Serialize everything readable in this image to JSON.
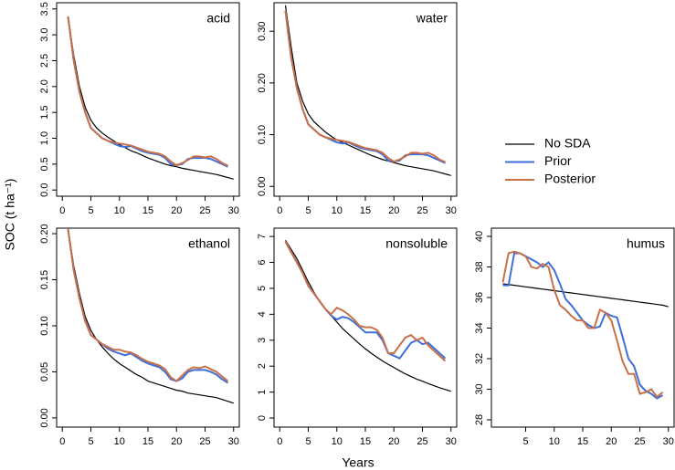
{
  "xlabel": "Years",
  "ylabel": "SOC (t ha⁻¹)",
  "chart_data": [
    {
      "type": "line",
      "title": "acid",
      "x": [
        1,
        2,
        3,
        4,
        5,
        6,
        7,
        8,
        9,
        10,
        11,
        12,
        13,
        14,
        15,
        16,
        17,
        18,
        19,
        20,
        21,
        22,
        23,
        24,
        25,
        26,
        27,
        28,
        29,
        30
      ],
      "series": [
        {
          "name": "No SDA",
          "color": "#000000",
          "values": [
            3.35,
            2.6,
            2.0,
            1.6,
            1.35,
            1.2,
            1.1,
            1.02,
            0.95,
            0.88,
            0.82,
            0.76,
            0.72,
            0.67,
            0.62,
            0.58,
            0.54,
            0.5,
            0.47,
            0.45,
            0.42,
            0.4,
            0.38,
            0.36,
            0.34,
            0.32,
            0.3,
            0.27,
            0.24,
            0.21
          ]
        },
        {
          "name": "Prior",
          "color": "#3f6fd8",
          "values": [
            3.35,
            2.5,
            1.9,
            1.5,
            1.2,
            1.1,
            1.0,
            0.95,
            0.9,
            0.85,
            0.83,
            0.85,
            0.8,
            0.75,
            0.72,
            0.7,
            0.68,
            0.62,
            0.5,
            0.48,
            0.5,
            0.6,
            0.62,
            0.62,
            0.62,
            0.6,
            0.55,
            0.5,
            0.45,
            null
          ]
        },
        {
          "name": "Posterior",
          "color": "#c8704a",
          "values": [
            3.35,
            2.5,
            1.9,
            1.5,
            1.2,
            1.1,
            1.0,
            0.95,
            0.92,
            0.9,
            0.88,
            0.86,
            0.82,
            0.78,
            0.74,
            0.72,
            0.7,
            0.65,
            0.55,
            0.48,
            0.52,
            0.58,
            0.65,
            0.65,
            0.63,
            0.65,
            0.6,
            0.52,
            0.47,
            null
          ]
        }
      ],
      "xlim": [
        -1,
        31
      ],
      "ylim": [
        -0.12,
        3.62
      ],
      "xticks": [
        0,
        5,
        10,
        15,
        20,
        25,
        30
      ],
      "yticks": [
        {
          "value": 0,
          "label": "0.0"
        },
        0.5,
        {
          "value": 1,
          "label": "1.0"
        },
        1.5,
        {
          "value": 2,
          "label": "2.0"
        },
        2.5,
        {
          "value": 3,
          "label": "3.0"
        },
        3.5
      ]
    },
    {
      "type": "line",
      "title": "water",
      "x": [
        1,
        2,
        3,
        4,
        5,
        6,
        7,
        8,
        9,
        10,
        11,
        12,
        13,
        14,
        15,
        16,
        17,
        18,
        19,
        20,
        21,
        22,
        23,
        24,
        25,
        26,
        27,
        28,
        29,
        30
      ],
      "series": [
        {
          "name": "No SDA",
          "color": "#000000",
          "values": [
            0.35,
            0.27,
            0.2,
            0.165,
            0.14,
            0.125,
            0.115,
            0.105,
            0.097,
            0.09,
            0.085,
            0.08,
            0.075,
            0.07,
            0.065,
            0.06,
            0.056,
            0.052,
            0.049,
            0.046,
            0.043,
            0.04,
            0.038,
            0.036,
            0.034,
            0.032,
            0.03,
            0.027,
            0.024,
            0.021
          ]
        },
        {
          "name": "Prior",
          "color": "#3f6fd8",
          "values": [
            0.34,
            0.25,
            0.19,
            0.15,
            0.12,
            0.11,
            0.1,
            0.095,
            0.09,
            0.085,
            0.083,
            0.085,
            0.08,
            0.075,
            0.072,
            0.07,
            0.068,
            0.062,
            0.05,
            0.048,
            0.05,
            0.06,
            0.062,
            0.062,
            0.062,
            0.06,
            0.055,
            0.05,
            0.045,
            null
          ]
        },
        {
          "name": "Posterior",
          "color": "#c8704a",
          "values": [
            0.34,
            0.25,
            0.19,
            0.15,
            0.12,
            0.11,
            0.1,
            0.095,
            0.092,
            0.09,
            0.088,
            0.086,
            0.082,
            0.078,
            0.074,
            0.072,
            0.07,
            0.065,
            0.055,
            0.048,
            0.052,
            0.058,
            0.065,
            0.065,
            0.063,
            0.065,
            0.06,
            0.052,
            0.047,
            null
          ]
        }
      ],
      "xlim": [
        -1,
        31
      ],
      "ylim": [
        -0.019,
        0.355
      ],
      "xticks": [
        0,
        5,
        10,
        15,
        20,
        25,
        30
      ],
      "yticks": [
        {
          "value": 0,
          "label": "0.00"
        },
        {
          "value": 0.1,
          "label": "0.10"
        },
        {
          "value": 0.2,
          "label": "0.20"
        },
        {
          "value": 0.3,
          "label": "0.30"
        }
      ]
    },
    {
      "type": "line",
      "title": "ethanol",
      "x": [
        1,
        2,
        3,
        4,
        5,
        6,
        7,
        8,
        9,
        10,
        11,
        12,
        13,
        14,
        15,
        16,
        17,
        18,
        19,
        20,
        21,
        22,
        23,
        24,
        25,
        26,
        27,
        28,
        29,
        30
      ],
      "series": [
        {
          "name": "No SDA",
          "color": "#000000",
          "values": [
            0.205,
            0.165,
            0.135,
            0.11,
            0.095,
            0.085,
            0.077,
            0.07,
            0.064,
            0.059,
            0.055,
            0.051,
            0.047,
            0.044,
            0.04,
            0.038,
            0.036,
            0.034,
            0.032,
            0.03,
            0.029,
            0.027,
            0.026,
            0.025,
            0.024,
            0.023,
            0.022,
            0.02,
            0.018,
            0.016
          ]
        },
        {
          "name": "Prior",
          "color": "#3f6fd8",
          "values": [
            0.205,
            0.16,
            0.13,
            0.105,
            0.09,
            0.085,
            0.08,
            0.075,
            0.072,
            0.07,
            0.068,
            0.07,
            0.066,
            0.062,
            0.059,
            0.057,
            0.055,
            0.05,
            0.042,
            0.04,
            0.043,
            0.05,
            0.052,
            0.052,
            0.052,
            0.05,
            0.047,
            0.042,
            0.038,
            null
          ]
        },
        {
          "name": "Posterior",
          "color": "#c8704a",
          "values": [
            0.205,
            0.16,
            0.13,
            0.105,
            0.09,
            0.085,
            0.08,
            0.077,
            0.074,
            0.074,
            0.072,
            0.071,
            0.068,
            0.064,
            0.061,
            0.059,
            0.057,
            0.053,
            0.044,
            0.04,
            0.046,
            0.052,
            0.055,
            0.054,
            0.056,
            0.053,
            0.05,
            0.045,
            0.04,
            null
          ]
        }
      ],
      "xlim": [
        -1,
        31
      ],
      "ylim": [
        -0.01,
        0.206
      ],
      "xticks": [
        0,
        5,
        10,
        15,
        20,
        25,
        30
      ],
      "yticks": [
        {
          "value": 0,
          "label": "0.00"
        },
        0.05,
        {
          "value": 0.1,
          "label": "0.10"
        },
        0.15,
        {
          "value": 0.2,
          "label": "0.20"
        }
      ]
    },
    {
      "type": "line",
      "title": "nonsoluble",
      "x": [
        1,
        2,
        3,
        4,
        5,
        6,
        7,
        8,
        9,
        10,
        11,
        12,
        13,
        14,
        15,
        16,
        17,
        18,
        19,
        20,
        21,
        22,
        23,
        24,
        25,
        26,
        27,
        28,
        29,
        30
      ],
      "series": [
        {
          "name": "No SDA",
          "color": "#000000",
          "values": [
            6.85,
            6.5,
            6.15,
            5.7,
            5.25,
            4.85,
            4.5,
            4.2,
            3.95,
            3.7,
            3.45,
            3.25,
            3.05,
            2.85,
            2.67,
            2.5,
            2.35,
            2.2,
            2.07,
            1.95,
            1.82,
            1.7,
            1.6,
            1.5,
            1.42,
            1.33,
            1.25,
            1.17,
            1.1,
            1.03
          ]
        },
        {
          "name": "Prior",
          "color": "#3f6fd8",
          "values": [
            6.8,
            6.4,
            6.0,
            5.6,
            5.1,
            4.8,
            4.5,
            4.2,
            3.95,
            3.8,
            3.9,
            3.85,
            3.7,
            3.5,
            3.3,
            3.3,
            3.3,
            3.0,
            2.5,
            2.4,
            2.3,
            2.6,
            2.9,
            3.0,
            2.85,
            2.9,
            2.7,
            2.5,
            2.3,
            null
          ]
        },
        {
          "name": "Posterior",
          "color": "#c8704a",
          "values": [
            6.8,
            6.4,
            6.0,
            5.6,
            5.1,
            4.8,
            4.5,
            4.2,
            4.0,
            4.25,
            4.15,
            4.0,
            3.8,
            3.55,
            3.5,
            3.5,
            3.4,
            3.1,
            2.5,
            2.5,
            2.8,
            3.1,
            3.2,
            3.0,
            3.1,
            2.8,
            2.6,
            2.4,
            2.2,
            null
          ]
        }
      ],
      "xlim": [
        -1,
        31
      ],
      "ylim": [
        -0.35,
        7.32
      ],
      "xticks": [
        0,
        5,
        10,
        15,
        20,
        25,
        30
      ],
      "yticks": [
        0,
        1,
        2,
        3,
        4,
        5,
        6,
        7
      ]
    },
    {
      "type": "line",
      "title": "humus",
      "x": [
        1,
        2,
        3,
        4,
        5,
        6,
        7,
        8,
        9,
        10,
        11,
        12,
        13,
        14,
        15,
        16,
        17,
        18,
        19,
        20,
        21,
        22,
        23,
        24,
        25,
        26,
        27,
        28,
        29,
        30
      ],
      "series": [
        {
          "name": "No SDA",
          "color": "#000000",
          "values": [
            36.9,
            36.85,
            36.8,
            36.75,
            36.7,
            36.65,
            36.6,
            36.55,
            36.5,
            36.45,
            36.4,
            36.35,
            36.3,
            36.25,
            36.2,
            36.15,
            36.1,
            36.05,
            36.0,
            35.95,
            35.9,
            35.85,
            35.8,
            35.75,
            35.7,
            35.65,
            35.6,
            35.55,
            35.5,
            35.4
          ]
        },
        {
          "name": "Prior",
          "color": "#3f6fd8",
          "values": [
            36.8,
            36.8,
            38.9,
            38.9,
            38.7,
            38.5,
            38.3,
            38.0,
            38.3,
            37.8,
            36.9,
            35.9,
            35.5,
            35.0,
            34.5,
            34.2,
            34.0,
            34.1,
            35.0,
            34.8,
            34.7,
            33.4,
            32.0,
            31.5,
            30.3,
            29.9,
            29.7,
            29.4,
            29.6,
            null
          ]
        },
        {
          "name": "Posterior",
          "color": "#c8704a",
          "values": [
            37.0,
            38.9,
            39.0,
            38.9,
            38.7,
            38.0,
            37.9,
            38.2,
            38.0,
            36.5,
            35.5,
            35.2,
            34.8,
            34.5,
            34.5,
            34.0,
            34.0,
            35.2,
            35.0,
            34.5,
            33.2,
            31.8,
            31.0,
            31.0,
            29.7,
            29.8,
            30.0,
            29.5,
            29.8,
            null
          ]
        }
      ],
      "xlim": [
        -1,
        31
      ],
      "ylim": [
        27.52,
        40.54
      ],
      "xticks": [
        5,
        10,
        15,
        20,
        25,
        30
      ],
      "yticks": [
        28,
        30,
        32,
        34,
        36,
        38,
        40
      ]
    }
  ]
}
